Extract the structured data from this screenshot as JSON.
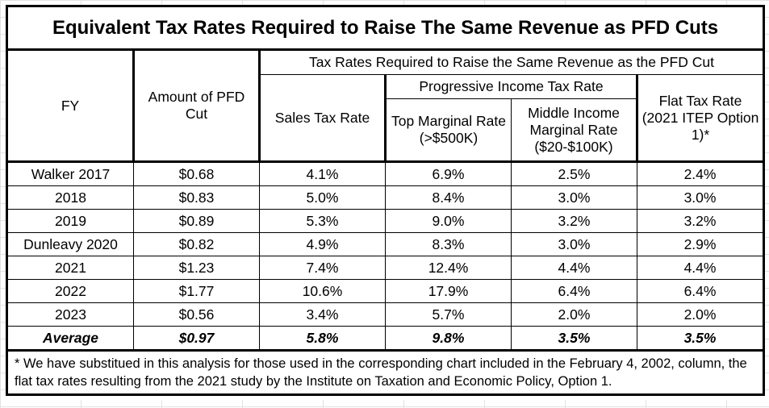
{
  "title": "Equivalent Tax Rates Required to Raise The Same Revenue as PFD Cuts",
  "headers": {
    "fy": "FY",
    "amount": "Amount of PFD Cut",
    "group": "Tax Rates Required to Raise the Same Revenue as the PFD Cut",
    "sales": "Sales Tax Rate",
    "progressive": "Progressive Income Tax Rate",
    "top_marginal": "Top Marginal Rate (>$500K)",
    "middle_income": "Middle Income Marginal Rate ($20-$100K)",
    "flat": "Flat Tax Rate (2021 ITEP Option 1)*"
  },
  "rows": [
    {
      "fy": "Walker 2017",
      "amount": "$0.68",
      "sales": "4.1%",
      "top": "6.9%",
      "middle": "2.5%",
      "flat": "2.4%"
    },
    {
      "fy": "2018",
      "amount": "$0.83",
      "sales": "5.0%",
      "top": "8.4%",
      "middle": "3.0%",
      "flat": "3.0%"
    },
    {
      "fy": "2019",
      "amount": "$0.89",
      "sales": "5.3%",
      "top": "9.0%",
      "middle": "3.2%",
      "flat": "3.2%"
    },
    {
      "fy": "Dunleavy 2020",
      "amount": "$0.82",
      "sales": "4.9%",
      "top": "8.3%",
      "middle": "3.0%",
      "flat": "2.9%"
    },
    {
      "fy": "2021",
      "amount": "$1.23",
      "sales": "7.4%",
      "top": "12.4%",
      "middle": "4.4%",
      "flat": "4.4%"
    },
    {
      "fy": "2022",
      "amount": "$1.77",
      "sales": "10.6%",
      "top": "17.9%",
      "middle": "6.4%",
      "flat": "6.4%"
    },
    {
      "fy": "2023",
      "amount": "$0.56",
      "sales": "3.4%",
      "top": "5.7%",
      "middle": "2.0%",
      "flat": "2.0%"
    }
  ],
  "average": {
    "fy": "Average",
    "amount": "$0.97",
    "sales": "5.8%",
    "top": "9.8%",
    "middle": "3.5%",
    "flat": "3.5%"
  },
  "footnote": "* We have substitued in this analysis for those used in the corresponding chart included in the February 4, 2002, column, the flat tax rates resulting from the 2021 study by the Institute on Taxation and Economic Policy, Option 1."
}
